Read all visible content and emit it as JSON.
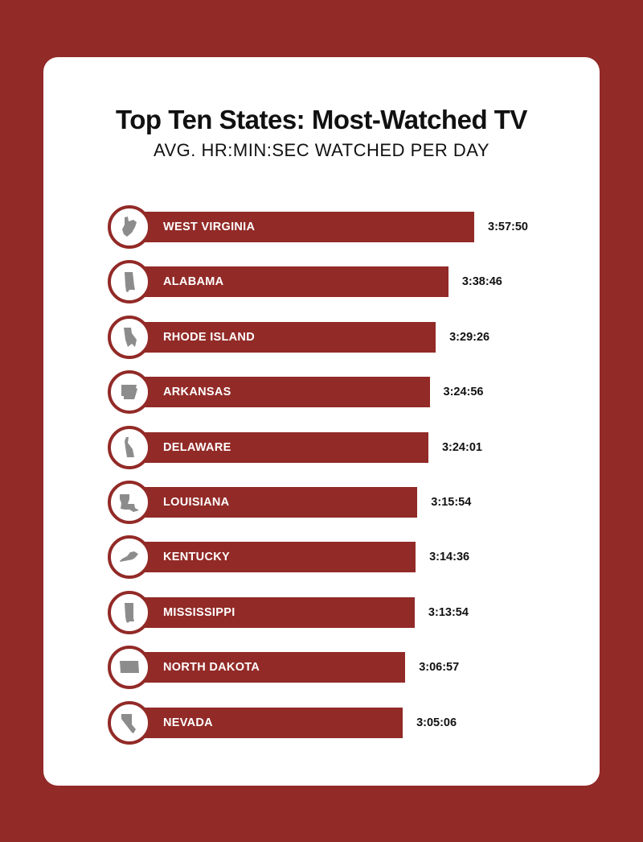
{
  "chart_data": {
    "type": "bar",
    "orientation": "horizontal",
    "title": "Top Ten States: Most-Watched TV",
    "subtitle": "AVG. HR:MIN:SEC WATCHED PER DAY",
    "categories": [
      "WEST VIRGINIA",
      "ALABAMA",
      "RHODE ISLAND",
      "ARKANSAS",
      "DELAWARE",
      "LOUISIANA",
      "KENTUCKY",
      "MISSISSIPPI",
      "NORTH DAKOTA",
      "NEVADA"
    ],
    "value_labels": [
      "3:57:50",
      "3:38:46",
      "3:29:26",
      "3:24:56",
      "3:24:01",
      "3:15:54",
      "3:14:36",
      "3:13:54",
      "3:06:57",
      "3:05:06"
    ],
    "icons": [
      "west-virginia-icon",
      "alabama-icon",
      "rhode-island-icon",
      "arkansas-icon",
      "delaware-icon",
      "louisiana-icon",
      "kentucky-icon",
      "mississippi-icon",
      "north-dakota-icon",
      "nevada-icon"
    ],
    "grid": false,
    "colors": {
      "background": "#922a27",
      "bar": "#922a27",
      "card": "#ffffff",
      "icon": "#8c8c8c"
    }
  }
}
